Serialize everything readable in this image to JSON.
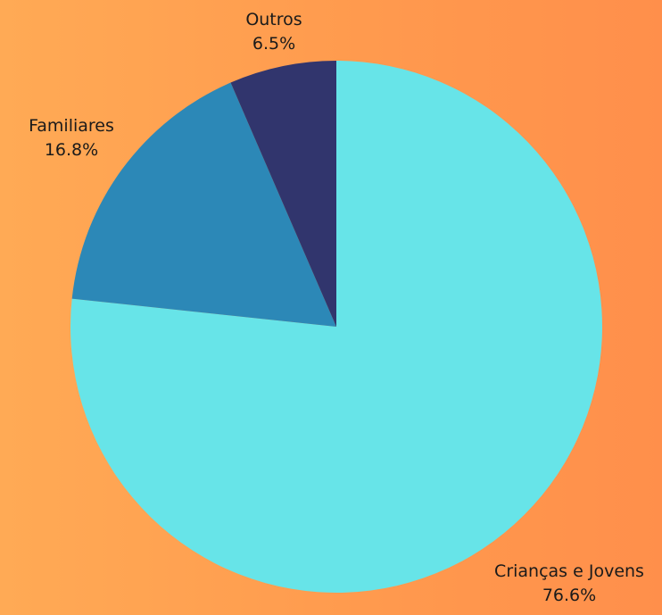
{
  "chart_data": {
    "type": "pie",
    "start": "top",
    "direction": "clockwise",
    "slices": [
      {
        "name": "Crianças e Jovens",
        "value": 76.6,
        "label": "76.6%",
        "color": "#67e4e8"
      },
      {
        "name": "Familiares",
        "value": 16.8,
        "label": "16.8%",
        "color": "#2c88b7"
      },
      {
        "name": "Outros",
        "value": 6.5,
        "label": "6.5%",
        "color": "#31356d"
      }
    ]
  }
}
